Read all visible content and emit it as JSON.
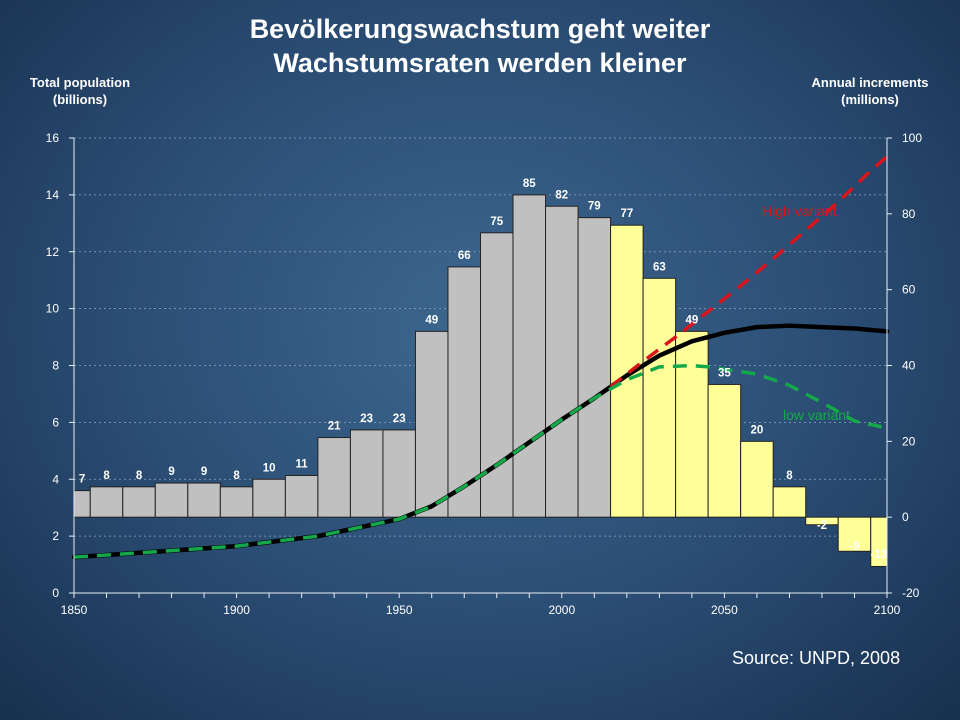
{
  "title_line1": "Bevölkerungswachstum geht weiter",
  "title_line2": "Wachstumsraten werden kleiner",
  "left_axis_title": [
    "Total population",
    "(billions)"
  ],
  "right_axis_title": [
    "Annual increments",
    "(millions)"
  ],
  "source": "Source: UNPD, 2008",
  "chart_data": {
    "type": "bar",
    "xlim": [
      1850,
      2100
    ],
    "ylim_left": [
      0,
      16
    ],
    "ylim_right": [
      -20,
      100
    ],
    "x_ticks": [
      1850,
      1900,
      1950,
      2000,
      2050,
      2100
    ],
    "y_ticks_left": [
      0,
      2,
      4,
      6,
      8,
      10,
      12,
      14,
      16
    ],
    "y_ticks_right": [
      -20,
      0,
      20,
      40,
      60,
      80,
      100
    ],
    "increments": {
      "axis": "right",
      "bars": [
        {
          "x0": 1850,
          "x1": 1855,
          "value": 7,
          "label": "7",
          "projected": false
        },
        {
          "x0": 1855,
          "x1": 1865,
          "value": 8,
          "label": "8",
          "projected": false
        },
        {
          "x0": 1865,
          "x1": 1875,
          "value": 8,
          "label": "8",
          "projected": false
        },
        {
          "x0": 1875,
          "x1": 1885,
          "value": 9,
          "label": "9",
          "projected": false
        },
        {
          "x0": 1885,
          "x1": 1895,
          "value": 9,
          "label": "9",
          "projected": false
        },
        {
          "x0": 1895,
          "x1": 1905,
          "value": 8,
          "label": "8",
          "projected": false
        },
        {
          "x0": 1905,
          "x1": 1915,
          "value": 10,
          "label": "10",
          "projected": false
        },
        {
          "x0": 1915,
          "x1": 1925,
          "value": 11,
          "label": "11",
          "projected": false
        },
        {
          "x0": 1925,
          "x1": 1935,
          "value": 21,
          "label": "21",
          "projected": false
        },
        {
          "x0": 1935,
          "x1": 1945,
          "value": 23,
          "label": "23",
          "projected": false
        },
        {
          "x0": 1945,
          "x1": 1955,
          "value": 23,
          "label": "23",
          "projected": false
        },
        {
          "x0": 1955,
          "x1": 1965,
          "value": 49,
          "label": "49",
          "projected": false
        },
        {
          "x0": 1965,
          "x1": 1975,
          "value": 66,
          "label": "66",
          "projected": false
        },
        {
          "x0": 1975,
          "x1": 1985,
          "value": 75,
          "label": "75",
          "projected": false
        },
        {
          "x0": 1985,
          "x1": 1995,
          "value": 85,
          "label": "85",
          "projected": false
        },
        {
          "x0": 1995,
          "x1": 2005,
          "value": 82,
          "label": "82",
          "projected": false
        },
        {
          "x0": 2005,
          "x1": 2015,
          "value": 79,
          "label": "79",
          "projected": false
        },
        {
          "x0": 2015,
          "x1": 2025,
          "value": 77,
          "label": "77",
          "projected": true
        },
        {
          "x0": 2025,
          "x1": 2035,
          "value": 63,
          "label": "63",
          "projected": true
        },
        {
          "x0": 2035,
          "x1": 2045,
          "value": 49,
          "label": "49",
          "projected": true
        },
        {
          "x0": 2045,
          "x1": 2055,
          "value": 35,
          "label": "35",
          "projected": true
        },
        {
          "x0": 2055,
          "x1": 2065,
          "value": 20,
          "label": "20",
          "projected": true
        },
        {
          "x0": 2065,
          "x1": 2075,
          "value": 8,
          "label": "8",
          "projected": true
        },
        {
          "x0": 2075,
          "x1": 2085,
          "value": -2,
          "label": "-2",
          "projected": true
        },
        {
          "x0": 2085,
          "x1": 2095,
          "value": -9,
          "label": "-9",
          "projected": true
        },
        {
          "x0": 2095,
          "x1": 2105,
          "value": -13,
          "label": "-13",
          "projected": true
        }
      ]
    },
    "series": [
      {
        "label": "",
        "axis": "left",
        "style": "solid",
        "color": "#000000",
        "x": [
          1850,
          1875,
          1900,
          1925,
          1950,
          1960,
          1970,
          1980,
          1990,
          2000,
          2010,
          2020,
          2030,
          2040,
          2050,
          2060,
          2070,
          2080,
          2090,
          2100
        ],
        "y": [
          1.26,
          1.45,
          1.65,
          2.0,
          2.6,
          3.05,
          3.75,
          4.5,
          5.3,
          6.1,
          6.85,
          7.65,
          8.35,
          8.85,
          9.15,
          9.35,
          9.4,
          9.35,
          9.3,
          9.2
        ]
      },
      {
        "label": "High variant",
        "axis": "left",
        "style": "dashed",
        "color": "#d9141c",
        "x": [
          2015,
          2025,
          2035,
          2045,
          2055,
          2065,
          2075,
          2085,
          2095,
          2100
        ],
        "y": [
          7.25,
          8.15,
          9.0,
          9.9,
          10.8,
          11.75,
          12.75,
          13.75,
          14.85,
          15.35
        ]
      },
      {
        "label": "low variant",
        "axis": "left",
        "style": "dashed",
        "color": "#15a84a",
        "x": [
          1850,
          1875,
          1900,
          1925,
          1950,
          1960,
          1970,
          1980,
          1990,
          2000,
          2010,
          2020,
          2030,
          2040,
          2045,
          2060,
          2070,
          2080,
          2090,
          2100
        ],
        "y": [
          1.26,
          1.45,
          1.65,
          2.0,
          2.6,
          3.05,
          3.75,
          4.5,
          5.3,
          6.1,
          6.85,
          7.5,
          7.95,
          8.0,
          7.95,
          7.7,
          7.3,
          6.7,
          6.05,
          5.8
        ]
      }
    ]
  }
}
